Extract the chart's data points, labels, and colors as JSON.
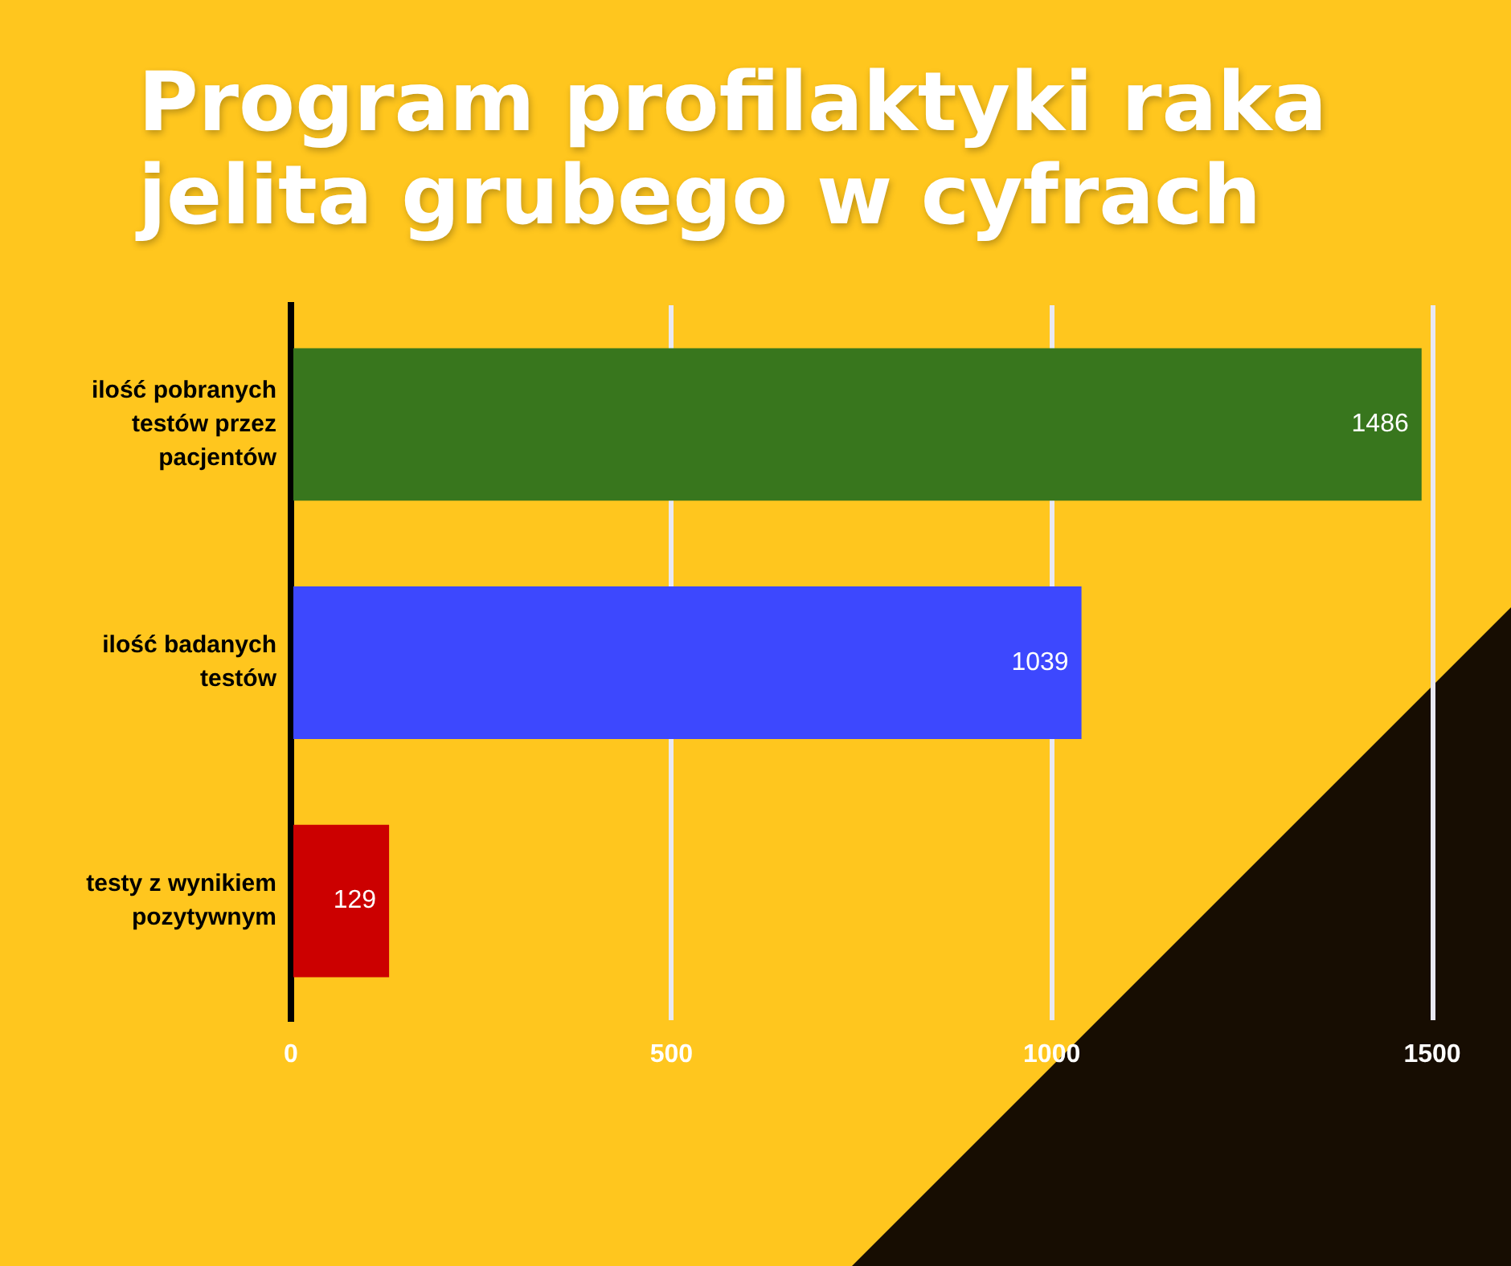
{
  "chart_data": {
    "type": "bar",
    "orientation": "horizontal",
    "title": "Program profilaktyki raka jelita grubego w cyfrach",
    "categories": [
      "ilość pobranych testów przez pacjentów",
      "ilość badanych testów",
      "testy z wynikiem pozytywnym"
    ],
    "values": [
      1486,
      1039,
      129
    ],
    "colors": [
      "#38761d",
      "#3d48fe",
      "#cc0000"
    ],
    "xlim": [
      0,
      1500
    ],
    "xticks": [
      0,
      500,
      1000,
      1500
    ],
    "grid": "x",
    "data_labels": true
  }
}
